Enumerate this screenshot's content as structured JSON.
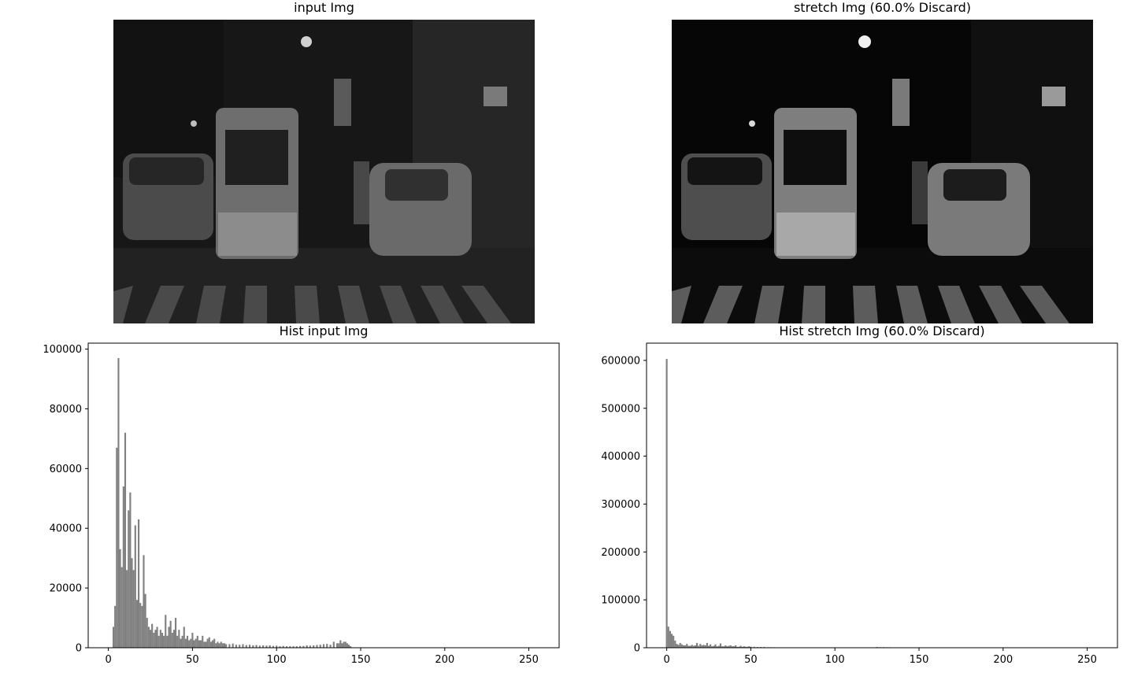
{
  "panels": {
    "input_title": "input Img",
    "stretch_title": "stretch Img (60.0% Discard)"
  },
  "chart_data": [
    {
      "type": "bar",
      "title": "Hist input Img",
      "xlabel": "",
      "ylabel": "",
      "xlim": [
        -12,
        268
      ],
      "ylim": [
        0,
        102000
      ],
      "xticks": [
        0,
        50,
        100,
        150,
        200,
        250
      ],
      "yticks": [
        0,
        20000,
        40000,
        60000,
        80000,
        100000
      ],
      "color": "#808080",
      "grid": false,
      "series": [
        {
          "x": [
            3,
            4,
            5,
            6,
            7,
            8,
            9,
            10,
            11,
            12,
            13,
            14,
            15,
            16,
            17,
            18,
            19,
            20,
            21,
            22,
            23,
            24,
            25,
            26,
            27,
            28,
            29,
            30,
            31,
            32,
            33,
            34,
            35,
            36,
            37,
            38,
            39,
            40,
            41,
            42,
            43,
            44,
            45,
            46,
            47,
            48,
            49,
            50,
            51,
            52,
            53,
            54,
            55,
            56,
            57,
            58,
            59,
            60,
            61,
            62,
            63,
            64,
            65,
            66,
            67,
            68,
            69,
            70,
            72,
            74,
            76,
            78,
            80,
            82,
            84,
            86,
            88,
            90,
            92,
            94,
            96,
            98,
            100,
            102,
            104,
            106,
            108,
            110,
            112,
            114,
            116,
            118,
            120,
            122,
            124,
            126,
            128,
            130,
            132,
            134,
            136,
            137,
            138,
            139,
            140,
            141,
            142,
            143,
            144
          ],
          "values": [
            7000,
            14000,
            67000,
            97000,
            33000,
            27000,
            54000,
            72000,
            26000,
            46000,
            52000,
            30000,
            26000,
            41000,
            16000,
            43000,
            15000,
            14000,
            31000,
            18000,
            10000,
            7000,
            6000,
            8000,
            5000,
            6000,
            7000,
            4000,
            6000,
            5000,
            4000,
            11000,
            4000,
            7000,
            9000,
            5000,
            6000,
            10000,
            4000,
            6000,
            3000,
            4000,
            7000,
            3000,
            4000,
            2500,
            3000,
            5000,
            2500,
            3000,
            4000,
            2500,
            2500,
            4000,
            2000,
            2000,
            3000,
            3500,
            2000,
            2500,
            3000,
            1500,
            2000,
            1500,
            2000,
            1500,
            1500,
            1200,
            1200,
            1400,
            1000,
            1000,
            1200,
            900,
            1000,
            800,
            900,
            700,
            800,
            700,
            800,
            600,
            700,
            500,
            600,
            500,
            500,
            500,
            500,
            600,
            600,
            800,
            700,
            800,
            900,
            1000,
            1200,
            1300,
            1000,
            2000,
            1500,
            1500,
            2500,
            1500,
            2000,
            2000,
            1500,
            1000,
            500
          ]
        }
      ]
    },
    {
      "type": "bar",
      "title": "Hist stretch Img (60.0% Discard)",
      "xlabel": "",
      "ylabel": "",
      "xlim": [
        -12,
        268
      ],
      "ylim": [
        0,
        636000
      ],
      "xticks": [
        0,
        50,
        100,
        150,
        200,
        250
      ],
      "yticks": [
        0,
        100000,
        200000,
        300000,
        400000,
        500000,
        600000
      ],
      "color": "#808080",
      "grid": false,
      "series": [
        {
          "x": [
            0,
            1,
            2,
            3,
            4,
            5,
            6,
            7,
            8,
            9,
            10,
            11,
            12,
            13,
            14,
            15,
            16,
            17,
            18,
            19,
            20,
            21,
            22,
            23,
            24,
            25,
            26,
            27,
            28,
            29,
            30,
            31,
            32,
            33,
            34,
            35,
            36,
            37,
            38,
            39,
            40,
            41,
            42,
            43,
            44,
            45,
            46,
            47,
            48,
            49,
            50,
            52,
            54,
            56,
            58,
            60,
            62,
            64,
            66,
            68,
            70,
            125,
            127,
            129,
            131,
            133
          ],
          "values": [
            603000,
            44000,
            35000,
            29000,
            25000,
            15000,
            8000,
            6000,
            10000,
            7000,
            5000,
            5000,
            8000,
            4000,
            4000,
            6000,
            4000,
            5000,
            10000,
            4000,
            8000,
            5000,
            6000,
            5000,
            10000,
            4000,
            7000,
            3000,
            4000,
            7000,
            3000,
            4000,
            9000,
            3000,
            3000,
            5000,
            3000,
            4000,
            5000,
            3000,
            3000,
            5000,
            2000,
            2000,
            4000,
            2000,
            3000,
            2000,
            2000,
            3000,
            2000,
            2000,
            1500,
            1500,
            1500,
            1000,
            1000,
            1000,
            800,
            800,
            800,
            1500,
            1200,
            1200,
            1000,
            1000
          ]
        }
      ]
    }
  ]
}
